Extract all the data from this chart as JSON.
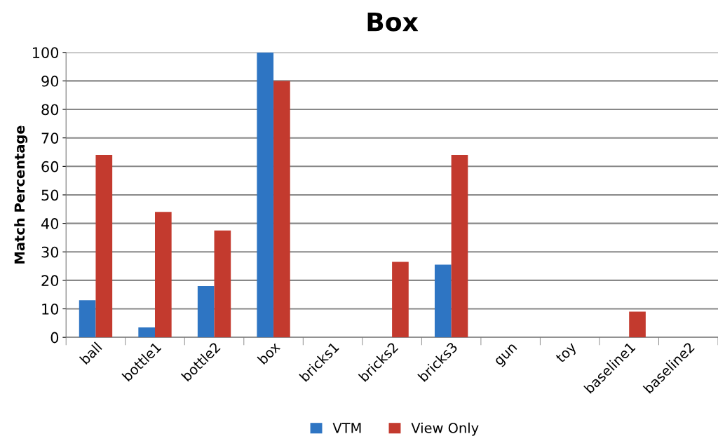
{
  "chart_data": {
    "type": "bar",
    "title": "Box",
    "ylabel": "Match Percentage",
    "categories": [
      "ball",
      "bottle1",
      "bottle2",
      "box",
      "bricks1",
      "bricks2",
      "bricks3",
      "gun",
      "toy",
      "baseline1",
      "baseline2"
    ],
    "series": [
      {
        "name": "VTM",
        "color": "#2e75c3",
        "values": [
          13,
          3.5,
          18,
          100,
          0,
          0,
          25.5,
          0,
          0,
          0,
          0
        ]
      },
      {
        "name": "View Only",
        "color": "#c33a2e",
        "values": [
          64,
          44,
          37.5,
          90,
          0,
          26.5,
          64,
          0,
          0,
          9,
          0
        ]
      }
    ],
    "ylim": [
      0,
      100
    ],
    "yticks": [
      0,
      10,
      20,
      30,
      40,
      50,
      60,
      70,
      80,
      90,
      100
    ],
    "grid": "y",
    "legend": "bottom"
  }
}
